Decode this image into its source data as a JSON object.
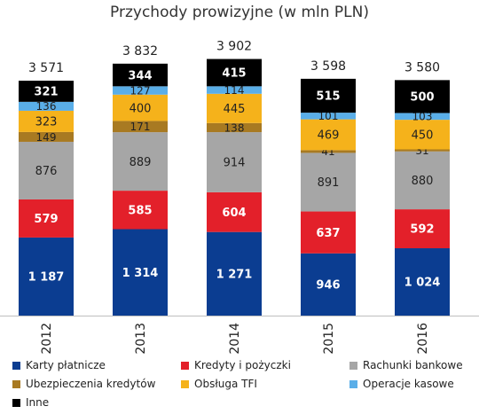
{
  "chart_data": {
    "type": "bar",
    "stacked": true,
    "title": "Przychody prowizyjne (w mln PLN)",
    "categories": [
      "2012",
      "2013",
      "2014",
      "2015",
      "2016"
    ],
    "totals": [
      "3 571",
      "3 832",
      "3 902",
      "3 598",
      "3 580"
    ],
    "series": [
      {
        "name": "Karty płatnicze",
        "color": "#0b3d91",
        "label_color": "#ffffff",
        "values": [
          1187,
          1314,
          1271,
          946,
          1024
        ],
        "labels": [
          "1 187",
          "1 314",
          "1 271",
          "946",
          "1 024"
        ]
      },
      {
        "name": "Kredyty i pożyczki",
        "color": "#e3202a",
        "label_color": "#ffffff",
        "values": [
          579,
          585,
          604,
          637,
          592
        ],
        "labels": [
          "579",
          "585",
          "604",
          "637",
          "592"
        ]
      },
      {
        "name": "Rachunki bankowe",
        "color": "#a6a6a6",
        "label_color": "#222222",
        "values": [
          876,
          889,
          914,
          891,
          880
        ],
        "labels": [
          "876",
          "889",
          "914",
          "891",
          "880"
        ]
      },
      {
        "name": "Ubezpieczenia kredytów",
        "color": "#a87a22",
        "label_color": "#222222",
        "values": [
          149,
          171,
          138,
          41,
          31
        ],
        "labels": [
          "149",
          "171",
          "138",
          "41",
          "31"
        ]
      },
      {
        "name": "Obsługa TFI",
        "color": "#f5b21b",
        "label_color": "#222222",
        "values": [
          323,
          400,
          445,
          469,
          450
        ],
        "labels": [
          "323",
          "400",
          "445",
          "469",
          "450"
        ]
      },
      {
        "name": "Operacje kasowe",
        "color": "#5aaee8",
        "label_color": "#222222",
        "values": [
          136,
          127,
          114,
          101,
          103
        ],
        "labels": [
          "136",
          "127",
          "114",
          "101",
          "103"
        ]
      },
      {
        "name": "Inne",
        "color": "#000000",
        "label_color": "#ffffff",
        "values": [
          321,
          344,
          415,
          515,
          500
        ],
        "labels": [
          "321",
          "344",
          "415",
          "515",
          "500"
        ]
      }
    ],
    "legend_position": "bottom",
    "grid": false
  }
}
